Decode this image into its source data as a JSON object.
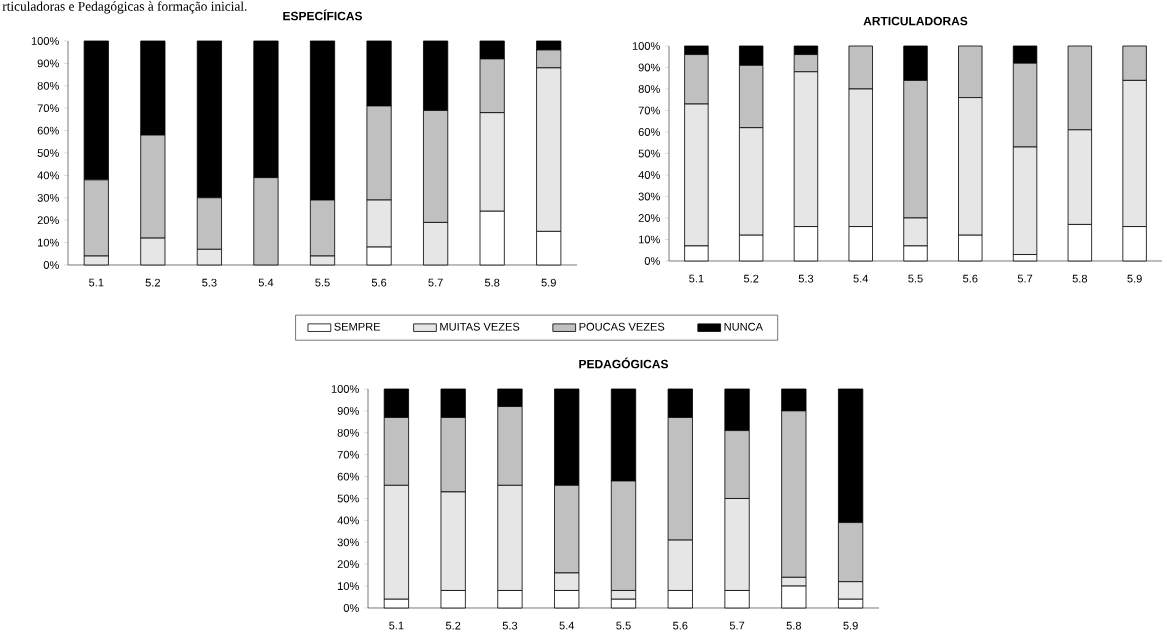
{
  "chart_data": [
    {
      "type": "bar",
      "stacked": true,
      "title": "ESPECÍFICAS",
      "annotations": [
        "rticuladoras e Pedagógicas à formação inicial."
      ],
      "categories": [
        "5.1",
        "5.2",
        "5.3",
        "5.4",
        "5.5",
        "5.6",
        "5.7",
        "5.8",
        "5.9"
      ],
      "ylim": [
        0,
        100
      ],
      "yticks": [
        {
          "value": 0,
          "label": "0%"
        },
        {
          "value": 10,
          "label": "10%"
        },
        {
          "value": 20,
          "label": "20%"
        },
        {
          "value": 30,
          "label": "30%"
        },
        {
          "value": 40,
          "label": "40%"
        },
        {
          "value": 50,
          "label": "50%"
        },
        {
          "value": 60,
          "label": "60%"
        },
        {
          "value": 70,
          "label": "70%"
        },
        {
          "value": 80,
          "label": "80%"
        },
        {
          "value": 90,
          "label": "90%"
        },
        {
          "value": 100,
          "label": "100%"
        }
      ],
      "series": [
        {
          "color": "#ffffff",
          "values": [
            0,
            0,
            0,
            0,
            0,
            8,
            0,
            24,
            15
          ]
        },
        {
          "color": "#e6e6e6",
          "values": [
            4,
            12,
            7,
            0,
            4,
            21,
            19,
            44,
            73
          ]
        },
        {
          "color": "#c0c0c0",
          "values": [
            34,
            46,
            23,
            39,
            25,
            42,
            50,
            24,
            8
          ]
        },
        {
          "color": "#000000",
          "values": [
            62,
            42,
            70,
            61,
            71,
            29,
            31,
            8,
            4
          ]
        }
      ]
    },
    {
      "type": "bar",
      "stacked": true,
      "title": "ARTICULADORAS",
      "categories": [
        "5.1",
        "5.2",
        "5.3",
        "5.4",
        "5.5",
        "5.6",
        "5.7",
        "5.8",
        "5.9"
      ],
      "ylim": [
        0,
        100
      ],
      "yticks": [
        {
          "value": 0,
          "label": "0%"
        },
        {
          "value": 10,
          "label": "10%"
        },
        {
          "value": 20,
          "label": "20%"
        },
        {
          "value": 30,
          "label": "30%"
        },
        {
          "value": 40,
          "label": "40%"
        },
        {
          "value": 50,
          "label": "50%"
        },
        {
          "value": 60,
          "label": "60%"
        },
        {
          "value": 70,
          "label": "70%"
        },
        {
          "value": 80,
          "label": "80%"
        },
        {
          "value": 90,
          "label": "90%"
        },
        {
          "value": 100,
          "label": "100%"
        }
      ],
      "series": [
        {
          "color": "#ffffff",
          "values": [
            7,
            12,
            16,
            16,
            7,
            12,
            3,
            17,
            16
          ]
        },
        {
          "color": "#e6e6e6",
          "values": [
            66,
            50,
            72,
            64,
            13,
            64,
            50,
            44,
            68
          ]
        },
        {
          "color": "#c0c0c0",
          "values": [
            23,
            29,
            8,
            20,
            64,
            24,
            39,
            39,
            16
          ]
        },
        {
          "color": "#000000",
          "values": [
            4,
            9,
            4,
            0,
            16,
            0,
            8,
            0,
            0
          ]
        }
      ]
    },
    {
      "type": "bar",
      "stacked": true,
      "title": "PEDAGÓGICAS",
      "legend": "top",
      "categories": [
        "5.1",
        "5.2",
        "5.3",
        "5.4",
        "5.5",
        "5.6",
        "5.7",
        "5.8",
        "5.9"
      ],
      "ylim": [
        0,
        100
      ],
      "yticks": [
        {
          "value": 0,
          "label": "0%"
        },
        {
          "value": 10,
          "label": "10%"
        },
        {
          "value": 20,
          "label": "20%"
        },
        {
          "value": 30,
          "label": "30%"
        },
        {
          "value": 40,
          "label": "40%"
        },
        {
          "value": 50,
          "label": "50%"
        },
        {
          "value": 60,
          "label": "60%"
        },
        {
          "value": 70,
          "label": "70%"
        },
        {
          "value": 80,
          "label": "80%"
        },
        {
          "value": 90,
          "label": "90%"
        },
        {
          "value": 100,
          "label": "100%"
        }
      ],
      "series": [
        {
          "name": "SEMPRE",
          "color": "#ffffff",
          "values": [
            4,
            8,
            8,
            8,
            4,
            8,
            8,
            10,
            4
          ]
        },
        {
          "name": "MUITAS VEZES",
          "color": "#e6e6e6",
          "values": [
            52,
            45,
            48,
            8,
            4,
            23,
            42,
            4,
            8
          ]
        },
        {
          "name": "POUCAS VEZES",
          "color": "#c0c0c0",
          "values": [
            31,
            34,
            36,
            40,
            50,
            56,
            31,
            76,
            27
          ]
        },
        {
          "name": "NUNCA",
          "color": "#000000",
          "values": [
            13,
            13,
            8,
            44,
            42,
            13,
            19,
            10,
            61
          ]
        }
      ]
    }
  ]
}
